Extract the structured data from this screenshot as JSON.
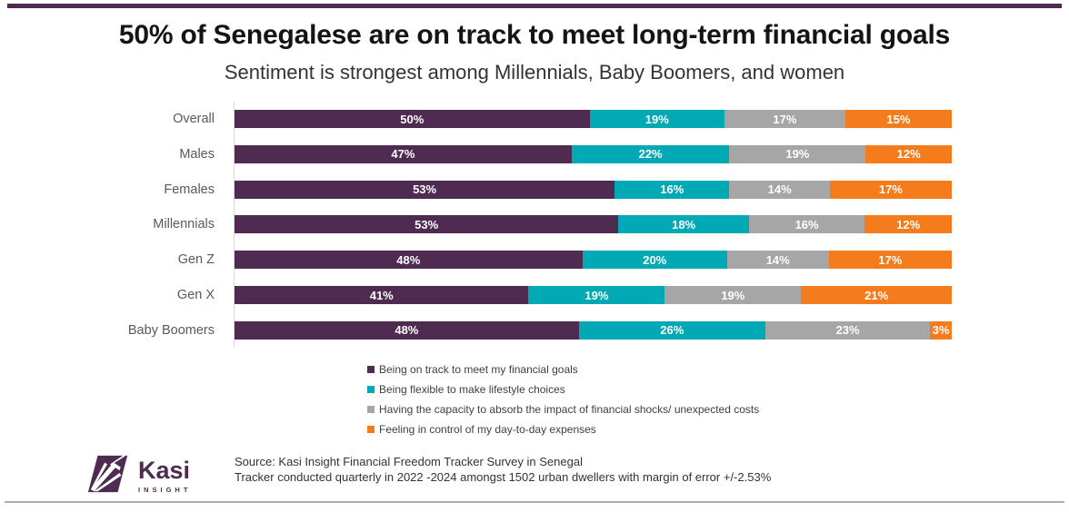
{
  "page": {
    "title": "50% of Senegalese are on track to meet long-term financial goals",
    "subtitle": "Sentiment is strongest among Millennials, Baby Boomers, and women"
  },
  "chart_data": {
    "type": "bar",
    "orientation": "horizontal",
    "stacked": true,
    "grid": false,
    "legend_position": "bottom-left",
    "value_suffix": "%",
    "xlim": [
      0,
      100
    ],
    "categories": [
      "Overall",
      "Males",
      "Females",
      "Millennials",
      "Gen Z",
      "Gen X",
      "Baby Boomers"
    ],
    "series": [
      {
        "name": "Being on track to meet my financial goals",
        "color": "#4F2A51",
        "values": [
          50,
          47,
          53,
          53,
          48,
          41,
          48
        ]
      },
      {
        "name": "Being flexible to make lifestyle choices",
        "color": "#00A9B4",
        "values": [
          19,
          22,
          16,
          18,
          20,
          19,
          26
        ]
      },
      {
        "name": "Having the capacity to absorb the impact of financial shocks/ unexpected costs",
        "color": "#A6A6A6",
        "values": [
          17,
          19,
          14,
          16,
          14,
          19,
          23
        ]
      },
      {
        "name": "Feeling in control of my day-to-day expenses",
        "color": "#F57C1C",
        "values": [
          15,
          12,
          17,
          12,
          17,
          21,
          3
        ]
      }
    ]
  },
  "footer": {
    "source_line1": "Source: Kasi Insight Financial Freedom Tracker Survey in Senegal",
    "source_line2": "Tracker conducted quarterly in 2022 -2024 amongst 1502 urban dwellers with margin of error +/-2.53%",
    "logo_name": "Kasi",
    "logo_tagline": "INSIGHT"
  },
  "theme": {
    "accent_purple": "#4F2A51",
    "teal": "#00A9B4",
    "gray": "#A6A6A6",
    "orange": "#F57C1C",
    "axis_line": "#D9D9D9",
    "top_rule": "#4F2A51",
    "bottom_rule": "#ADADAD",
    "title_color": "#141414",
    "category_label_color": "#595959",
    "legend_text_color": "#404040",
    "bar_value_text_color": "#ffffff"
  }
}
